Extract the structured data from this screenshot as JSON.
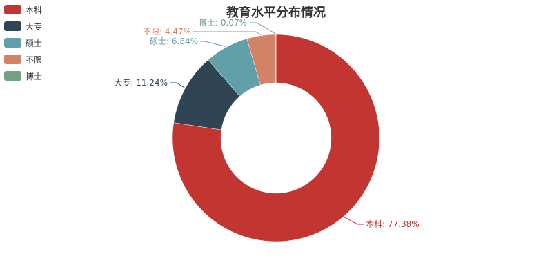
{
  "chart_data": {
    "type": "pie",
    "title": "教育水平分布情况",
    "legend_position": "top-left",
    "categories": [
      "本科",
      "大专",
      "硕士",
      "不限",
      "博士"
    ],
    "values": [
      77.38,
      11.24,
      6.84,
      4.47,
      0.07
    ],
    "slice_labels": [
      "本科: 77.38%",
      "大专: 11.24%",
      "硕士: 6.84%",
      "不限: 4.47%",
      "博士: 0.07%"
    ],
    "colors": [
      "#c23531",
      "#2f4554",
      "#61a0a8",
      "#d48265",
      "#749f83"
    ]
  }
}
